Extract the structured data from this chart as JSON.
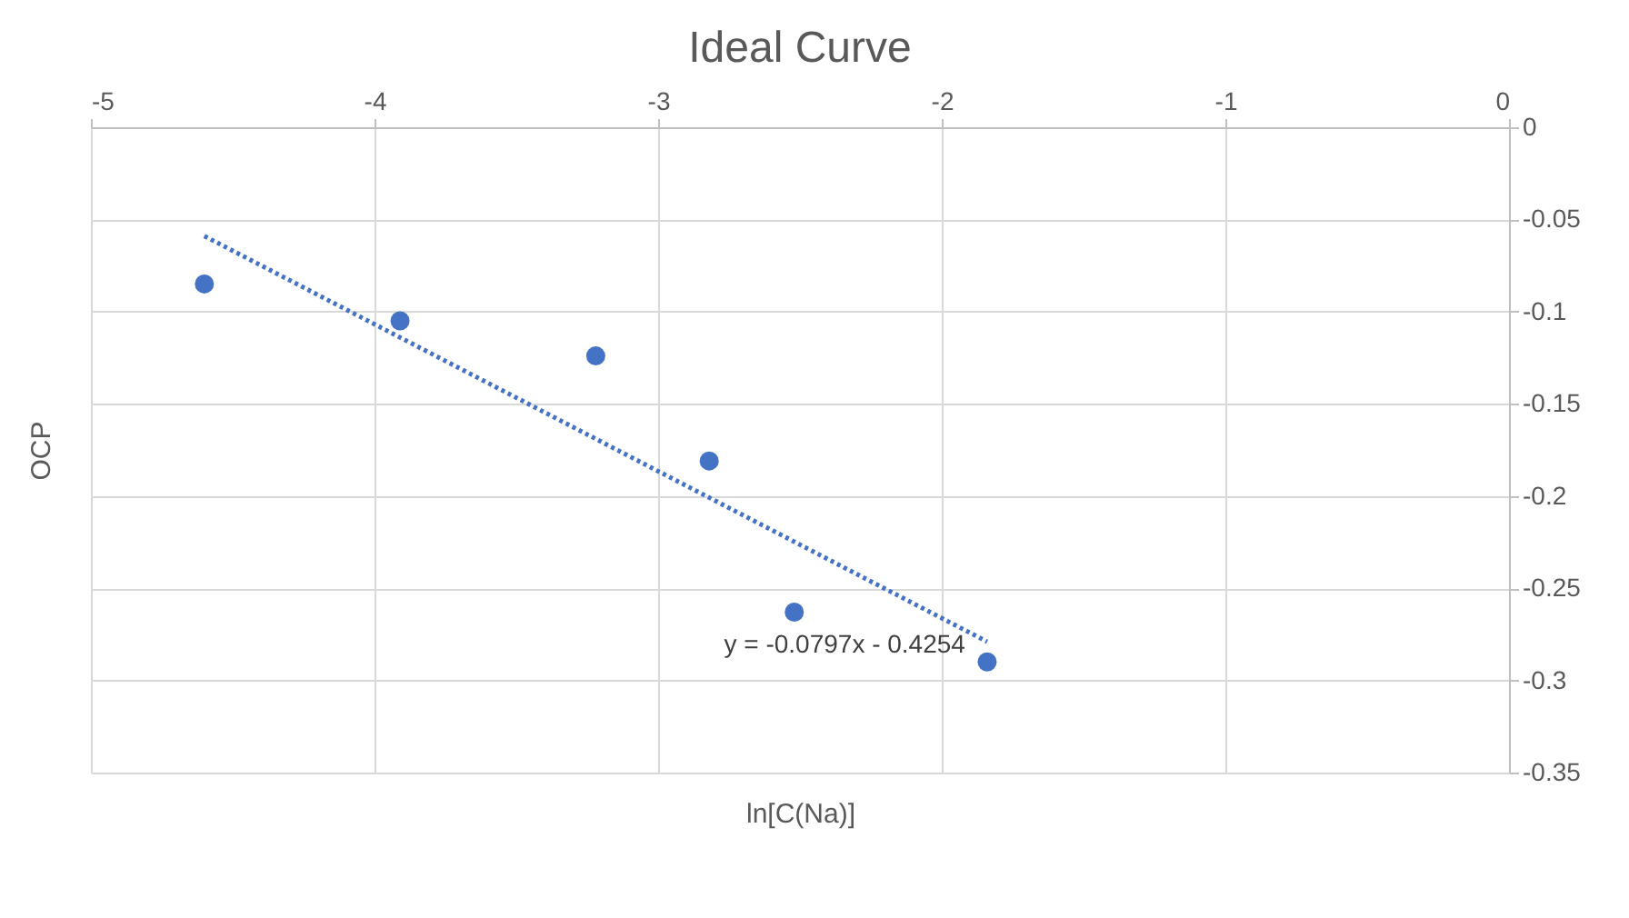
{
  "chart_data": {
    "type": "scatter",
    "title": "Ideal Curve",
    "xlabel": "ln[C(Na)]",
    "ylabel": "OCP",
    "xlim": [
      -5,
      0
    ],
    "xticks": [
      -5,
      -4,
      -3,
      -2,
      -1,
      0
    ],
    "ylim": [
      -0.35,
      0
    ],
    "yticks": [
      -0.35,
      -0.3,
      -0.25,
      -0.2,
      -0.15,
      -0.1,
      -0.05,
      0
    ],
    "grid": true,
    "series": [
      {
        "type": "scatter",
        "color": "#4472c4",
        "marker": "circle",
        "x": [
          -4.6,
          -3.91,
          -3.22,
          -2.82,
          -2.52,
          -1.84
        ],
        "values": [
          -0.085,
          -0.105,
          -0.124,
          -0.181,
          -0.263,
          -0.29
        ]
      },
      {
        "type": "line",
        "color": "#4472c4",
        "line_style": "dotted",
        "marker": "none",
        "x": [
          -4.6,
          -1.84
        ],
        "values": [
          -0.059,
          -0.279
        ]
      }
    ],
    "annotations": [
      "y = -0.0797x - 0.4254"
    ]
  }
}
